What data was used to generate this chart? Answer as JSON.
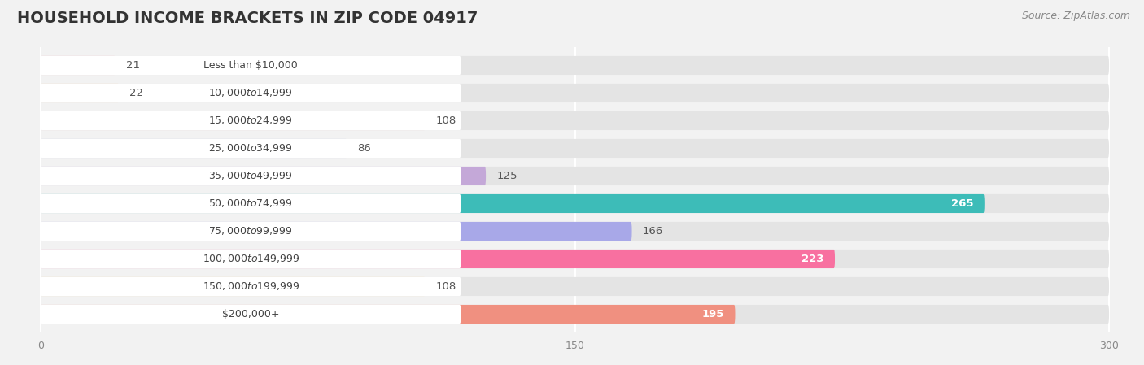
{
  "title": "HOUSEHOLD INCOME BRACKETS IN ZIP CODE 04917",
  "source": "Source: ZipAtlas.com",
  "categories": [
    "Less than $10,000",
    "$10,000 to $14,999",
    "$15,000 to $24,999",
    "$25,000 to $34,999",
    "$35,000 to $49,999",
    "$50,000 to $74,999",
    "$75,000 to $99,999",
    "$100,000 to $149,999",
    "$150,000 to $199,999",
    "$200,000+"
  ],
  "values": [
    21,
    22,
    108,
    86,
    125,
    265,
    166,
    223,
    108,
    195
  ],
  "bar_colors": [
    "#f4a0b0",
    "#f9c98a",
    "#f0948a",
    "#a8bde0",
    "#c4a8d8",
    "#3dbcb8",
    "#a8a8e8",
    "#f870a0",
    "#f9c87a",
    "#f09080"
  ],
  "label_colors": [
    "black",
    "black",
    "black",
    "black",
    "black",
    "white",
    "black",
    "white",
    "black",
    "white"
  ],
  "xlim": [
    -5,
    305
  ],
  "xticks": [
    0,
    150,
    300
  ],
  "background_color": "#f2f2f2",
  "bar_background_color": "#e4e4e4",
  "label_box_color": "#ffffff",
  "title_fontsize": 14,
  "source_fontsize": 9,
  "label_fontsize": 9,
  "value_fontsize": 9.5
}
